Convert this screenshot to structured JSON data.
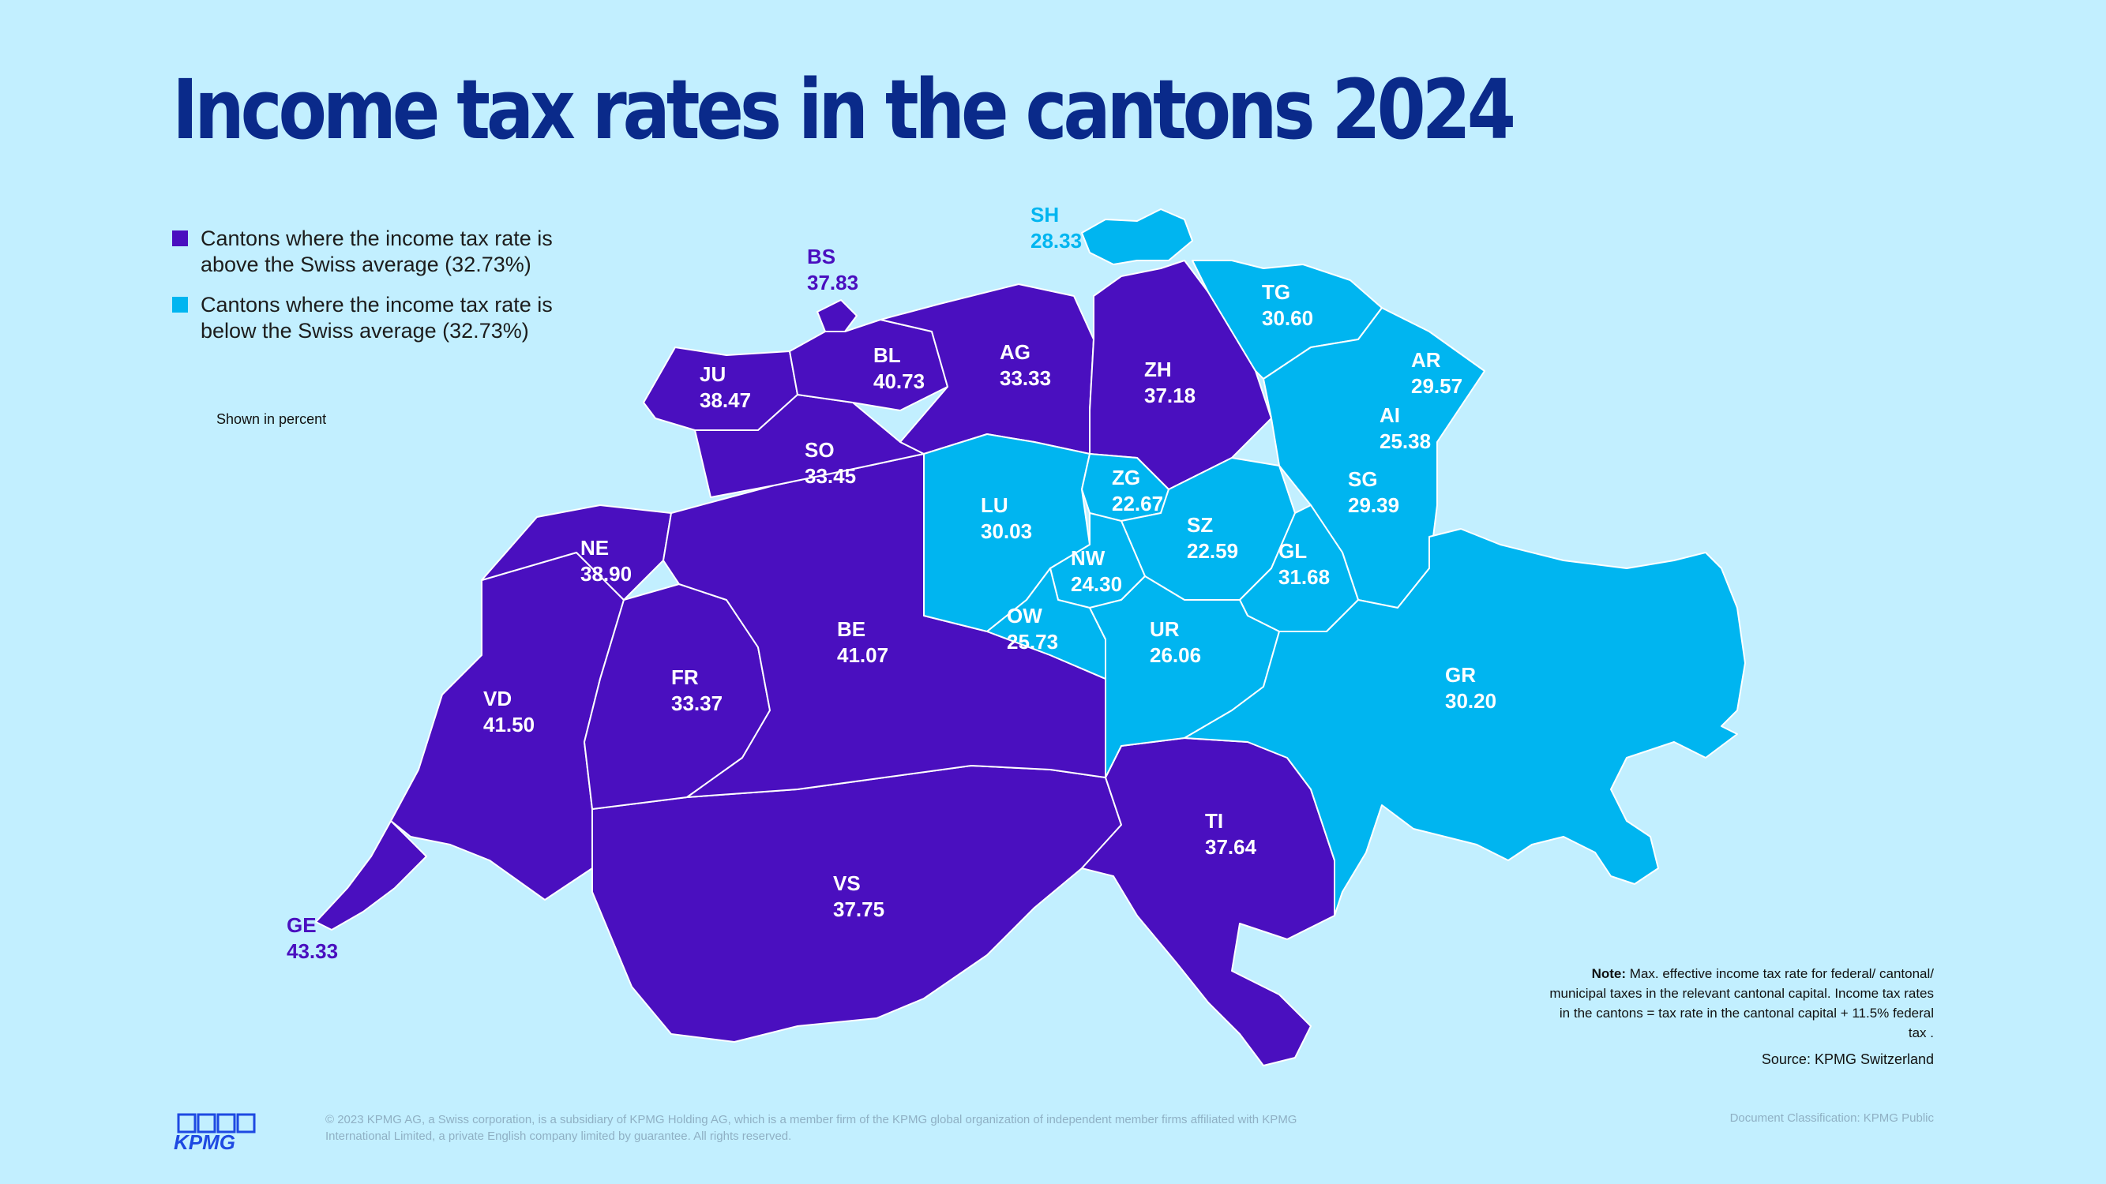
{
  "title": "Income tax rates in the cantons 2024",
  "legend": {
    "above": {
      "label": "Cantons where the income tax rate is above the Swiss average (32.73%)",
      "color": "#4a0fbf"
    },
    "below": {
      "label": "Cantons where the income tax rate is below the Swiss average (32.73%)",
      "color": "#00b5f0"
    },
    "unit_note": "Shown in percent"
  },
  "colors": {
    "background": "#c2efff",
    "above": "#4a0fbf",
    "below": "#00b5f0",
    "border": "#ffffff",
    "title": "#0a2a8a"
  },
  "cantons": [
    {
      "code": "BS",
      "value": "37.83",
      "group": "above"
    },
    {
      "code": "BL",
      "value": "40.73",
      "group": "above"
    },
    {
      "code": "JU",
      "value": "38.47",
      "group": "above"
    },
    {
      "code": "AG",
      "value": "33.33",
      "group": "above"
    },
    {
      "code": "ZH",
      "value": "37.18",
      "group": "above"
    },
    {
      "code": "SO",
      "value": "33.45",
      "group": "above"
    },
    {
      "code": "NE",
      "value": "38.90",
      "group": "above"
    },
    {
      "code": "BE",
      "value": "41.07",
      "group": "above"
    },
    {
      "code": "FR",
      "value": "33.37",
      "group": "above"
    },
    {
      "code": "VD",
      "value": "41.50",
      "group": "above"
    },
    {
      "code": "GE",
      "value": "43.33",
      "group": "above"
    },
    {
      "code": "VS",
      "value": "37.75",
      "group": "above"
    },
    {
      "code": "TI",
      "value": "37.64",
      "group": "above"
    },
    {
      "code": "SH",
      "value": "28.33",
      "group": "below"
    },
    {
      "code": "TG",
      "value": "30.60",
      "group": "below"
    },
    {
      "code": "AR",
      "value": "29.57",
      "group": "below"
    },
    {
      "code": "AI",
      "value": "25.38",
      "group": "below"
    },
    {
      "code": "SG",
      "value": "29.39",
      "group": "below"
    },
    {
      "code": "ZG",
      "value": "22.67",
      "group": "below"
    },
    {
      "code": "LU",
      "value": "30.03",
      "group": "below"
    },
    {
      "code": "SZ",
      "value": "22.59",
      "group": "below"
    },
    {
      "code": "NW",
      "value": "24.30",
      "group": "below"
    },
    {
      "code": "GL",
      "value": "31.68",
      "group": "below"
    },
    {
      "code": "OW",
      "value": "25.73",
      "group": "below"
    },
    {
      "code": "UR",
      "value": "26.06",
      "group": "below"
    },
    {
      "code": "GR",
      "value": "30.20",
      "group": "below"
    }
  ],
  "note": {
    "label": "Note:",
    "text": " Max. effective income tax rate for federal/ cantonal/ municipal taxes in the relevant cantonal capital. Income tax rates in the cantons = tax rate in the cantonal capital + 11.5% federal tax ."
  },
  "source": "Source: KPMG Switzerland",
  "footer": {
    "logo_text": "KPMG",
    "copyright": "© 2023 KPMG AG, a Swiss corporation, is a subsidiary of KPMG Holding AG, which is a member firm of the KPMG global organization of independent member firms affiliated with KPMG International Limited, a private English company limited by guarantee. All rights reserved.",
    "classification": "Document Classification: KPMG Public"
  }
}
